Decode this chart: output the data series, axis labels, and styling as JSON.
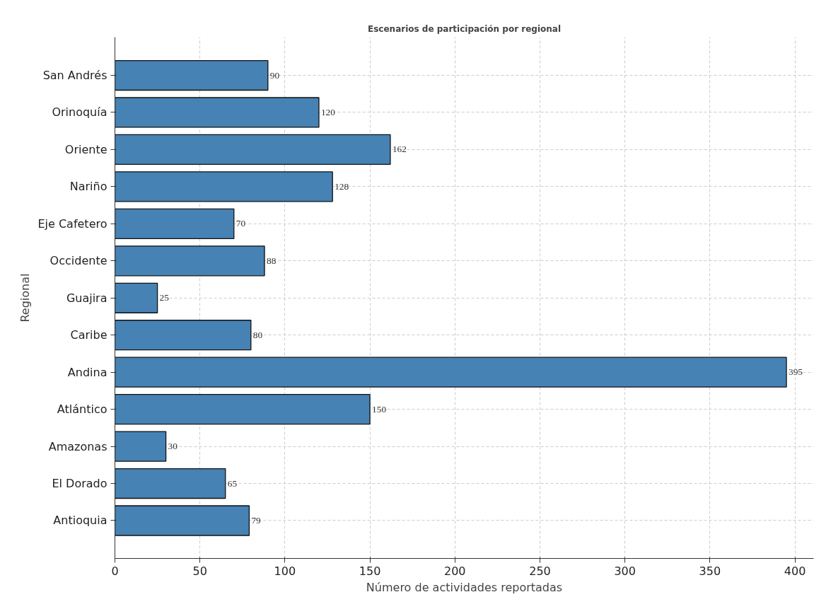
{
  "chart_data": {
    "type": "bar",
    "orientation": "horizontal",
    "title": "Escenarios de participación por regional",
    "xlabel": "Número de actividades reportadas",
    "ylabel": "Regional",
    "categories": [
      "San Andrés",
      "Orinoquía",
      "Oriente",
      "Nariño",
      "Eje Cafetero",
      "Occidente",
      "Guajira",
      "Caribe",
      "Andina",
      "Atlántico",
      "Amazonas",
      "El Dorado",
      "Antioquia"
    ],
    "values": [
      90,
      120,
      162,
      128,
      70,
      88,
      25,
      80,
      395,
      150,
      30,
      65,
      79
    ],
    "color": "#4682b4",
    "xlim": [
      0,
      411
    ],
    "xticks": [
      0,
      50,
      100,
      150,
      200,
      250,
      300,
      350,
      400
    ],
    "grid": true,
    "data_labels": true
  }
}
